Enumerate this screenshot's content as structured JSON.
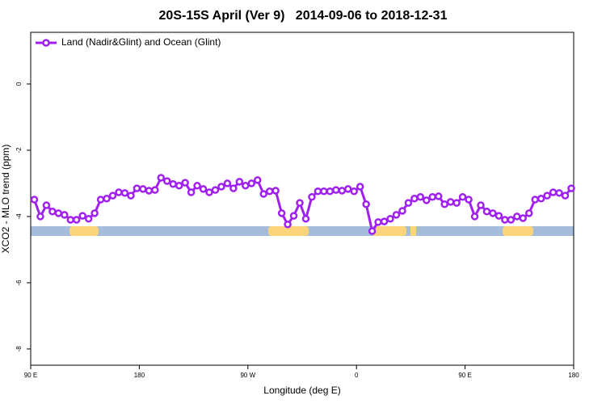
{
  "chart_data": {
    "type": "line",
    "title": "20S-15S April (Ver 9)   2014-09-06 to 2018-12-31",
    "x_label": "Longitude (deg E)",
    "y_label": "XCO2 - MLO trend (ppm)",
    "legend": "top-left",
    "xlim": [
      90,
      540
    ],
    "xticks": [
      {
        "value": 90,
        "label": "90 E"
      },
      {
        "value": 180,
        "label": "180"
      },
      {
        "value": 270,
        "label": "90 W"
      },
      {
        "value": 360,
        "label": "0"
      },
      {
        "value": 450,
        "label": "90 E"
      },
      {
        "value": 540,
        "label": "180"
      }
    ],
    "ylim": [
      -8.49,
      1.56
    ],
    "yticks": [
      0,
      -2,
      -4,
      -6,
      -8
    ],
    "x": [
      93,
      98,
      103,
      108,
      113,
      118,
      123,
      128,
      133,
      138,
      143,
      148,
      153,
      158,
      163,
      168,
      173,
      178,
      183,
      188,
      193,
      198,
      203,
      208,
      213,
      218,
      223,
      228,
      233,
      238,
      243,
      248,
      253,
      258,
      263,
      268,
      273,
      278,
      283,
      288,
      293,
      298,
      303,
      308,
      313,
      318,
      323,
      328,
      333,
      338,
      343,
      348,
      353,
      358,
      363,
      368,
      373,
      378,
      383,
      388,
      393,
      398,
      403,
      408,
      413,
      418,
      423,
      428,
      433,
      438,
      443,
      448,
      453,
      458,
      463,
      468,
      473,
      478,
      483,
      488,
      493,
      498,
      503,
      508,
      513,
      518,
      523,
      528,
      533,
      538
    ],
    "series": [
      {
        "name": "Land (Nadir&Glint) and Ocean (Glint)",
        "color": "#a020f0",
        "values": [
          -3.49,
          -4.0,
          -3.66,
          -3.85,
          -3.9,
          -3.95,
          -4.1,
          -4.1,
          -3.98,
          -4.07,
          -3.9,
          -3.49,
          -3.46,
          -3.37,
          -3.27,
          -3.29,
          -3.37,
          -3.15,
          -3.17,
          -3.22,
          -3.2,
          -2.83,
          -2.93,
          -3.02,
          -3.07,
          -2.98,
          -3.27,
          -3.07,
          -3.17,
          -3.27,
          -3.2,
          -3.1,
          -3.0,
          -3.15,
          -2.95,
          -3.07,
          -3.0,
          -2.9,
          -3.32,
          -3.24,
          -3.22,
          -3.9,
          -4.24,
          -3.98,
          -3.59,
          -4.07,
          -3.41,
          -3.24,
          -3.24,
          -3.24,
          -3.2,
          -3.22,
          -3.17,
          -3.24,
          -3.1,
          -3.63,
          -4.44,
          -4.17,
          -4.15,
          -4.07,
          -3.95,
          -3.83,
          -3.59,
          -3.46,
          -3.41,
          -3.51,
          -3.41,
          -3.39,
          -3.63,
          -3.56,
          -3.59,
          -3.41,
          -3.49,
          -4.0,
          -3.66,
          -3.85,
          -3.9,
          -3.98,
          -4.1,
          -4.1,
          -4.0,
          -4.05,
          -3.9,
          -3.49,
          -3.46,
          -3.37,
          -3.27,
          -3.29,
          -3.37,
          -3.15
        ]
      }
    ]
  }
}
